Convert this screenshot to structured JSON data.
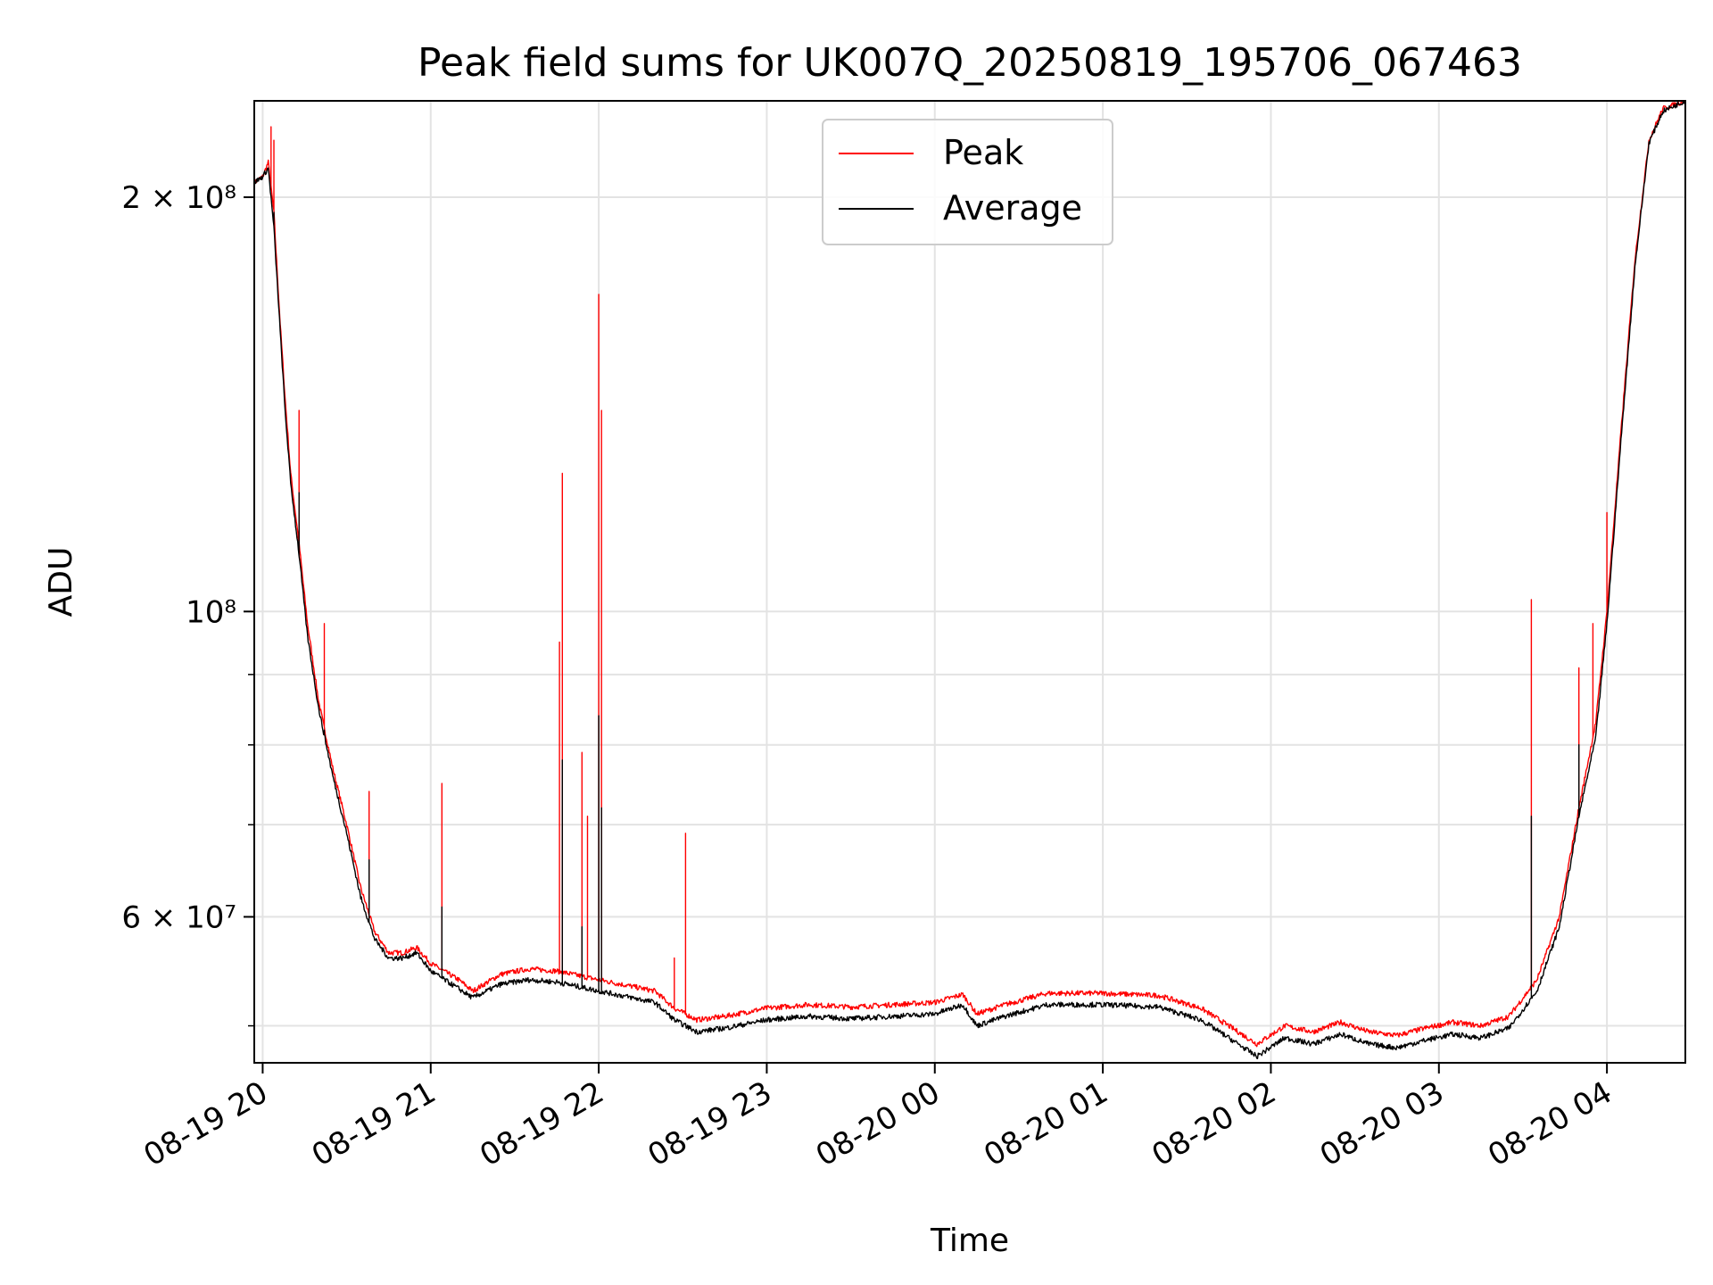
{
  "chart_data": {
    "type": "line",
    "title": "Peak field sums for UK007Q_20250819_195706_067463",
    "xlabel": "Time",
    "ylabel": "ADU",
    "yscale": "log",
    "xlim": [
      "08-19 19:57",
      "08-20 04:28"
    ],
    "ylim": [
      47000000,
      235000000
    ],
    "grid": true,
    "legend": "upper center",
    "x_ticks": [
      "08-19 20",
      "08-19 21",
      "08-19 22",
      "08-19 23",
      "08-20 00",
      "08-20 01",
      "08-20 02",
      "08-20 03",
      "08-20 04"
    ],
    "y_tick_labels": [
      {
        "value": 60000000,
        "label": "6 × 10⁷"
      },
      {
        "value": 100000000,
        "label": "10⁸"
      },
      {
        "value": 200000000,
        "label": "2 × 10⁸"
      }
    ],
    "series": [
      {
        "name": "Peak",
        "color": "#ff0000",
        "points": [
          [
            "08-19 19:57",
            205000000
          ],
          [
            "08-19 20:00",
            207000000
          ],
          [
            "08-19 20:02",
            212000000
          ],
          [
            "08-19 20:04",
            195000000
          ],
          [
            "08-19 20:06",
            165000000
          ],
          [
            "08-19 20:08",
            143000000
          ],
          [
            "08-19 20:10",
            126000000
          ],
          [
            "08-19 20:13",
            112000000
          ],
          [
            "08-19 20:16",
            98000000
          ],
          [
            "08-19 20:20",
            86000000
          ],
          [
            "08-19 20:25",
            77000000
          ],
          [
            "08-19 20:30",
            70000000
          ],
          [
            "08-19 20:35",
            63000000
          ],
          [
            "08-19 20:40",
            58500000
          ],
          [
            "08-19 20:45",
            56500000
          ],
          [
            "08-19 20:50",
            56500000
          ],
          [
            "08-19 20:55",
            57000000
          ],
          [
            "08-19 21:00",
            55500000
          ],
          [
            "08-19 21:10",
            54000000
          ],
          [
            "08-19 21:15",
            53000000
          ],
          [
            "08-19 21:25",
            54500000
          ],
          [
            "08-19 21:35",
            55000000
          ],
          [
            "08-19 21:45",
            54800000
          ],
          [
            "08-19 22:00",
            54000000
          ],
          [
            "08-19 22:10",
            53500000
          ],
          [
            "08-19 22:20",
            53000000
          ],
          [
            "08-19 22:27",
            51500000
          ],
          [
            "08-19 22:35",
            50500000
          ],
          [
            "08-19 22:45",
            50800000
          ],
          [
            "08-19 23:00",
            51500000
          ],
          [
            "08-19 23:15",
            51800000
          ],
          [
            "08-19 23:30",
            51600000
          ],
          [
            "08-19 23:45",
            51800000
          ],
          [
            "08-20 00:00",
            52000000
          ],
          [
            "08-20 00:10",
            52700000
          ],
          [
            "08-20 00:15",
            51000000
          ],
          [
            "08-20 00:25",
            51800000
          ],
          [
            "08-20 00:40",
            52800000
          ],
          [
            "08-20 01:00",
            52800000
          ],
          [
            "08-20 01:20",
            52600000
          ],
          [
            "08-20 01:35",
            51500000
          ],
          [
            "08-20 01:45",
            50000000
          ],
          [
            "08-20 01:55",
            48500000
          ],
          [
            "08-20 02:05",
            50000000
          ],
          [
            "08-20 02:15",
            49500000
          ],
          [
            "08-20 02:25",
            50300000
          ],
          [
            "08-20 02:35",
            49500000
          ],
          [
            "08-20 02:45",
            49200000
          ],
          [
            "08-20 02:55",
            49800000
          ],
          [
            "08-20 03:05",
            50300000
          ],
          [
            "08-20 03:15",
            50000000
          ],
          [
            "08-20 03:25",
            50800000
          ],
          [
            "08-20 03:35",
            54000000
          ],
          [
            "08-20 03:43",
            60000000
          ],
          [
            "08-20 03:50",
            72000000
          ],
          [
            "08-20 03:56",
            83000000
          ],
          [
            "08-20 04:00",
            100000000
          ],
          [
            "08-20 04:05",
            135000000
          ],
          [
            "08-20 04:10",
            180000000
          ],
          [
            "08-20 04:15",
            220000000
          ],
          [
            "08-20 04:20",
            232000000
          ],
          [
            "08-20 04:28",
            235000000
          ]
        ],
        "spikes": [
          [
            "08-19 20:03",
            225000000
          ],
          [
            "08-19 20:04",
            220000000
          ],
          [
            "08-19 20:13",
            140000000
          ],
          [
            "08-19 20:22",
            98000000
          ],
          [
            "08-19 20:38",
            74000000
          ],
          [
            "08-19 21:04",
            75000000
          ],
          [
            "08-19 21:46",
            95000000
          ],
          [
            "08-19 21:47",
            126000000
          ],
          [
            "08-19 21:54",
            79000000
          ],
          [
            "08-19 21:56",
            71000000
          ],
          [
            "08-19 22:00",
            170000000
          ],
          [
            "08-19 22:01",
            140000000
          ],
          [
            "08-19 22:27",
            56000000
          ],
          [
            "08-19 22:31",
            69000000
          ],
          [
            "08-20 03:33",
            102000000
          ],
          [
            "08-20 03:50",
            91000000
          ],
          [
            "08-20 03:55",
            98000000
          ],
          [
            "08-20 04:00",
            118000000
          ]
        ]
      },
      {
        "name": "Average",
        "color": "#000000",
        "points": [
          [
            "08-19 19:57",
            205000000
          ],
          [
            "08-19 20:00",
            207000000
          ],
          [
            "08-19 20:02",
            210000000
          ],
          [
            "08-19 20:04",
            190000000
          ],
          [
            "08-19 20:06",
            163000000
          ],
          [
            "08-19 20:08",
            140000000
          ],
          [
            "08-19 20:10",
            124000000
          ],
          [
            "08-19 20:13",
            110000000
          ],
          [
            "08-19 20:16",
            96000000
          ],
          [
            "08-19 20:20",
            85000000
          ],
          [
            "08-19 20:25",
            76000000
          ],
          [
            "08-19 20:30",
            69000000
          ],
          [
            "08-19 20:35",
            62000000
          ],
          [
            "08-19 20:40",
            57800000
          ],
          [
            "08-19 20:45",
            56000000
          ],
          [
            "08-19 20:50",
            56000000
          ],
          [
            "08-19 20:55",
            56500000
          ],
          [
            "08-19 21:00",
            54800000
          ],
          [
            "08-19 21:10",
            53200000
          ],
          [
            "08-19 21:15",
            52400000
          ],
          [
            "08-19 21:25",
            53600000
          ],
          [
            "08-19 21:35",
            54000000
          ],
          [
            "08-19 21:45",
            53800000
          ],
          [
            "08-19 22:00",
            53000000
          ],
          [
            "08-19 22:10",
            52500000
          ],
          [
            "08-19 22:20",
            52000000
          ],
          [
            "08-19 22:27",
            50500000
          ],
          [
            "08-19 22:35",
            49500000
          ],
          [
            "08-19 22:45",
            49800000
          ],
          [
            "08-19 23:00",
            50500000
          ],
          [
            "08-19 23:15",
            50800000
          ],
          [
            "08-19 23:30",
            50600000
          ],
          [
            "08-19 23:45",
            50800000
          ],
          [
            "08-20 00:00",
            51000000
          ],
          [
            "08-20 00:10",
            51800000
          ],
          [
            "08-20 00:15",
            50000000
          ],
          [
            "08-20 00:25",
            50800000
          ],
          [
            "08-20 00:40",
            51800000
          ],
          [
            "08-20 01:00",
            51800000
          ],
          [
            "08-20 01:20",
            51600000
          ],
          [
            "08-20 01:35",
            50500000
          ],
          [
            "08-20 01:45",
            49000000
          ],
          [
            "08-20 01:55",
            47500000
          ],
          [
            "08-20 02:05",
            49000000
          ],
          [
            "08-20 02:15",
            48500000
          ],
          [
            "08-20 02:25",
            49300000
          ],
          [
            "08-20 02:35",
            48500000
          ],
          [
            "08-20 02:45",
            48200000
          ],
          [
            "08-20 02:55",
            48800000
          ],
          [
            "08-20 03:05",
            49300000
          ],
          [
            "08-20 03:15",
            49000000
          ],
          [
            "08-20 03:25",
            49800000
          ],
          [
            "08-20 03:35",
            53000000
          ],
          [
            "08-20 03:43",
            59000000
          ],
          [
            "08-20 03:50",
            71000000
          ],
          [
            "08-20 03:56",
            81000000
          ],
          [
            "08-20 04:00",
            98000000
          ],
          [
            "08-20 04:05",
            133000000
          ],
          [
            "08-20 04:10",
            178000000
          ],
          [
            "08-20 04:15",
            219000000
          ],
          [
            "08-20 04:20",
            231000000
          ],
          [
            "08-20 04:28",
            235000000
          ]
        ],
        "spikes": [
          [
            "08-19 20:04",
            195000000
          ],
          [
            "08-19 20:13",
            122000000
          ],
          [
            "08-19 20:22",
            82000000
          ],
          [
            "08-19 20:38",
            66000000
          ],
          [
            "08-19 21:04",
            61000000
          ],
          [
            "08-19 21:47",
            78000000
          ],
          [
            "08-19 21:54",
            59000000
          ],
          [
            "08-19 22:00",
            84000000
          ],
          [
            "08-19 22:01",
            72000000
          ],
          [
            "08-20 03:33",
            71000000
          ],
          [
            "08-20 03:50",
            80000000
          ]
        ]
      }
    ]
  }
}
